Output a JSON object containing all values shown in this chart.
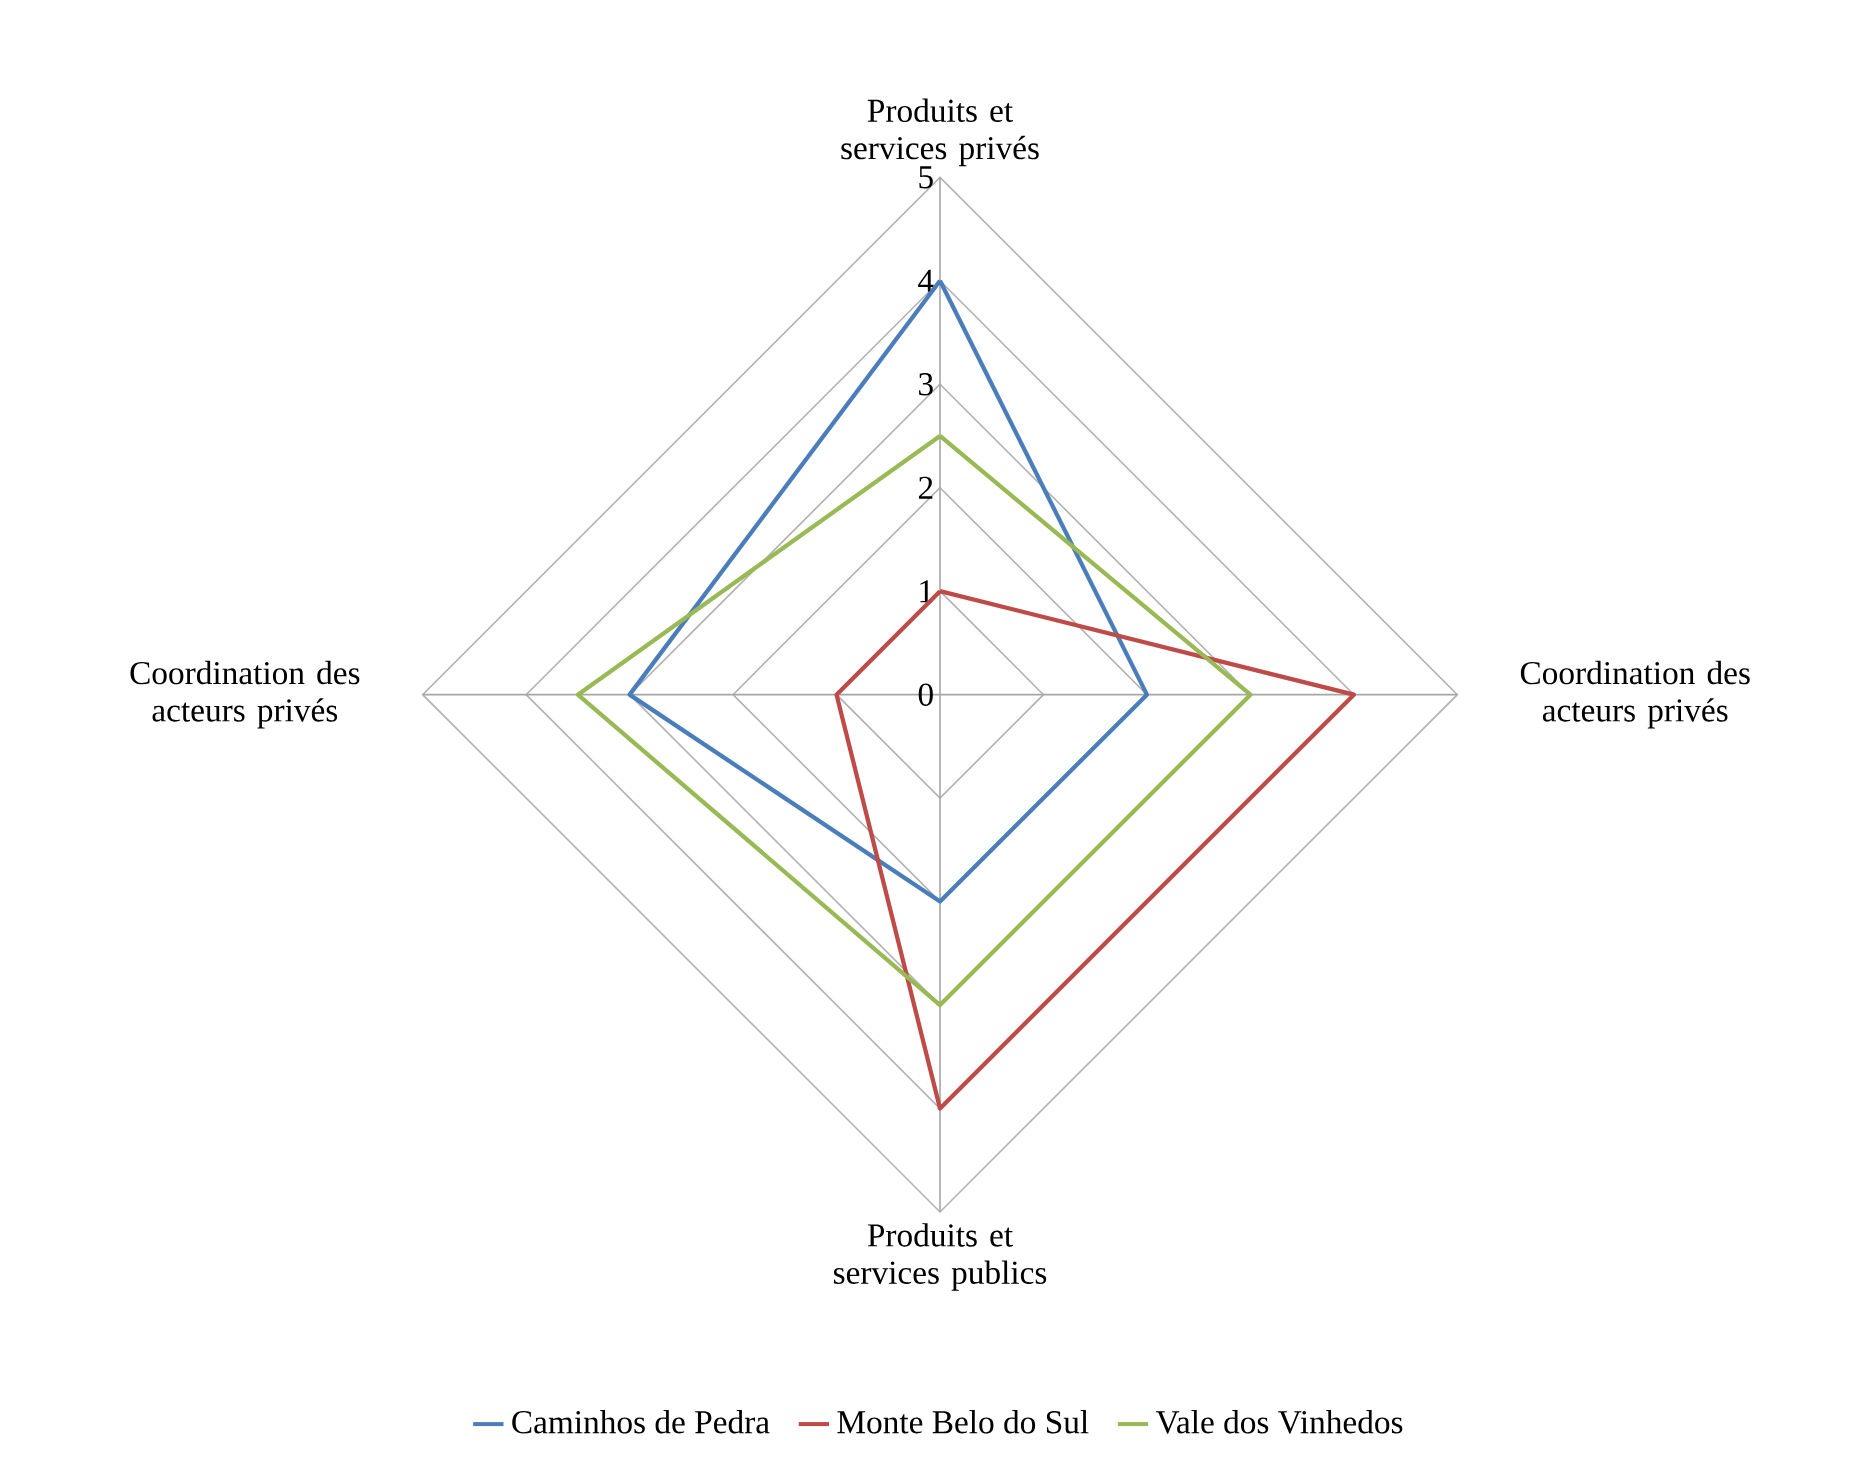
{
  "chart_data": {
    "type": "radar",
    "categories": [
      "Produits et services privés",
      "Coordination des acteurs privés",
      "Produits et services publics",
      "Coordination des acteurs privés"
    ],
    "series": [
      {
        "name": "Caminhos de Pedra",
        "color": "#4a7ebb",
        "values": [
          4,
          2,
          2,
          3
        ]
      },
      {
        "name": "Monte Belo do Sul",
        "color": "#be4b48",
        "values": [
          1,
          4,
          4,
          1
        ]
      },
      {
        "name": "Vale dos Vinhedos",
        "color": "#98b954",
        "values": [
          2.5,
          3,
          3,
          3.5
        ]
      }
    ],
    "ylim": [
      0,
      5
    ],
    "yticks": [
      0,
      1,
      2,
      3,
      4,
      5
    ],
    "grid": true,
    "legend": "bottom",
    "marker": "none",
    "line_style": "solid"
  }
}
